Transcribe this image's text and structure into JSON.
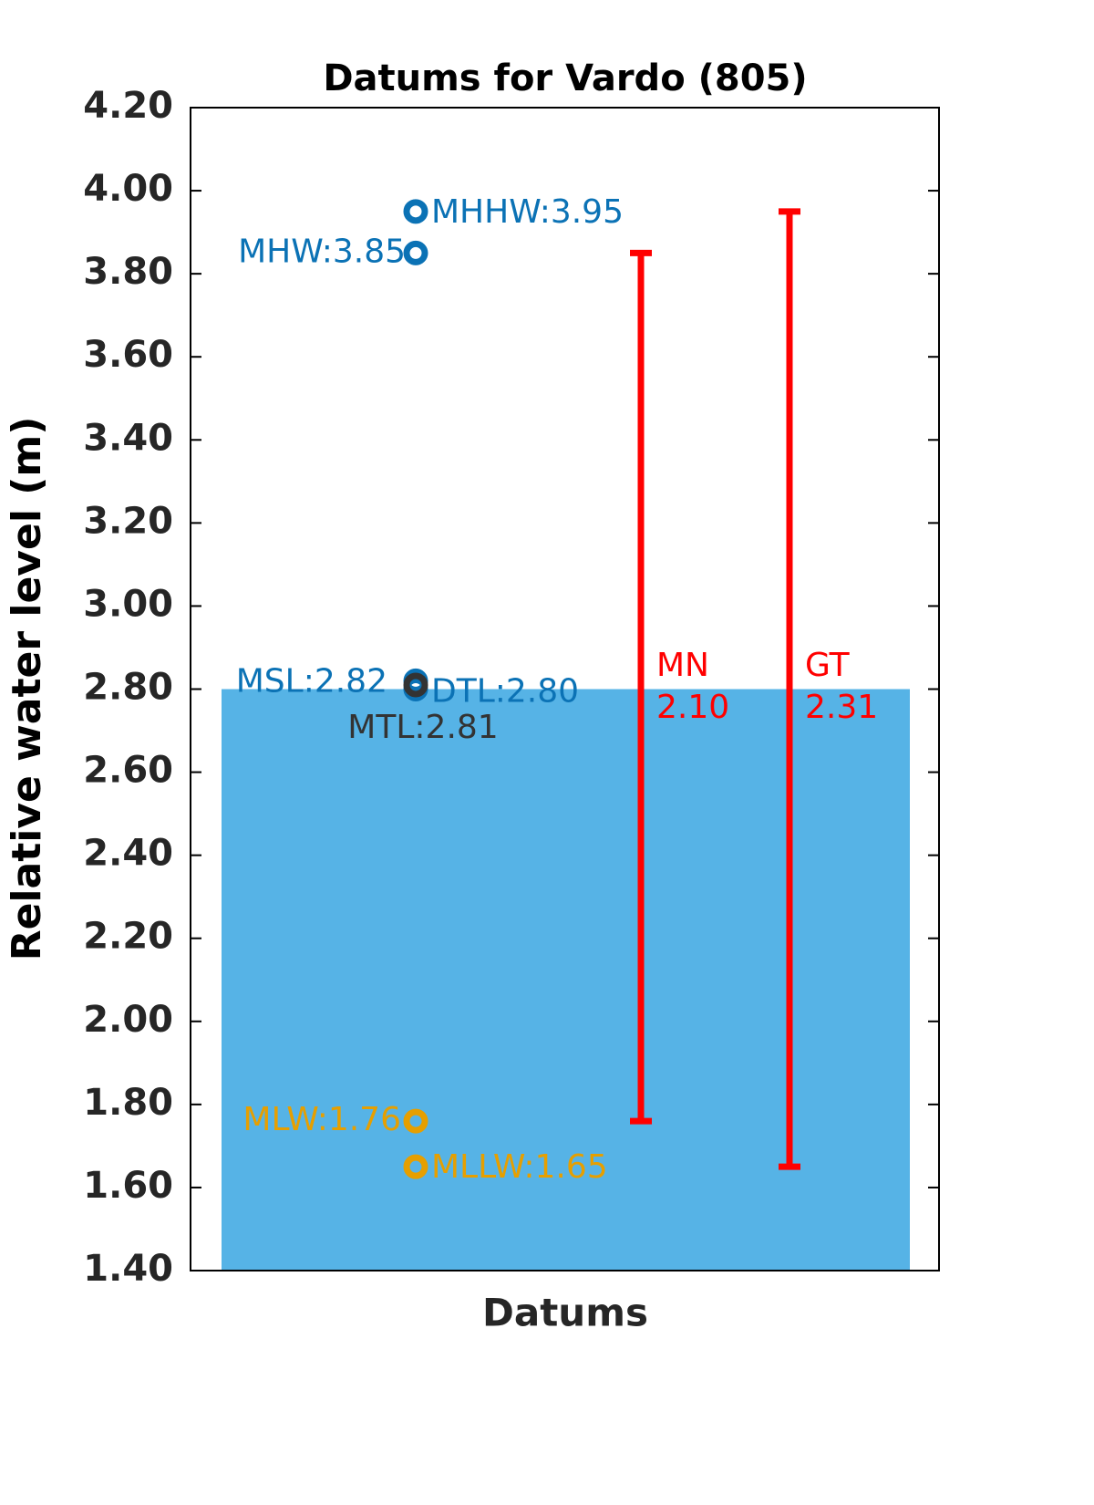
{
  "chart_data": {
    "type": "datums",
    "title": "Datums for Vardo (805)",
    "xlabel": "Datums",
    "ylabel": "Relative water level (m)",
    "ylim": [
      1.4,
      4.2
    ],
    "yticks": [
      {
        "value": 1.4,
        "label": "1.40"
      },
      {
        "value": 1.6,
        "label": "1.60"
      },
      {
        "value": 1.8,
        "label": "1.80"
      },
      {
        "value": 2.0,
        "label": "2.00"
      },
      {
        "value": 2.2,
        "label": "2.20"
      },
      {
        "value": 2.4,
        "label": "2.40"
      },
      {
        "value": 2.6,
        "label": "2.60"
      },
      {
        "value": 2.8,
        "label": "2.80"
      },
      {
        "value": 3.0,
        "label": "3.00"
      },
      {
        "value": 3.2,
        "label": "3.20"
      },
      {
        "value": 3.4,
        "label": "3.40"
      },
      {
        "value": 3.6,
        "label": "3.60"
      },
      {
        "value": 3.8,
        "label": "3.80"
      },
      {
        "value": 4.0,
        "label": "4.00"
      },
      {
        "value": 4.2,
        "label": "4.20"
      }
    ],
    "bar": {
      "value": 2.8,
      "color": "#56b3e6"
    },
    "datums": [
      {
        "label": "MHHW:3.95",
        "value": 3.95,
        "color": "#0b72b5"
      },
      {
        "label": "MHW:3.85",
        "value": 3.85,
        "color": "#0b72b5"
      },
      {
        "label": "MSL:2.82",
        "value": 2.82,
        "color": "#0b72b5"
      },
      {
        "label": "DTL:2.80",
        "value": 2.8,
        "color": "#0b72b5"
      },
      {
        "label": "MTL:2.81",
        "value": 2.81,
        "color": "#333333"
      },
      {
        "label": "MLW:1.76",
        "value": 1.76,
        "color": "#e69f00"
      },
      {
        "label": "MLLW:1.65",
        "value": 1.65,
        "color": "#e69f00"
      }
    ],
    "ranges": [
      {
        "name": "MN",
        "low": 1.76,
        "high": 3.85,
        "value": 2.1,
        "value_label": "2.10",
        "color": "#ff0000"
      },
      {
        "name": "GT",
        "low": 1.65,
        "high": 3.95,
        "value": 2.31,
        "value_label": "2.31",
        "color": "#ff0000"
      }
    ]
  }
}
